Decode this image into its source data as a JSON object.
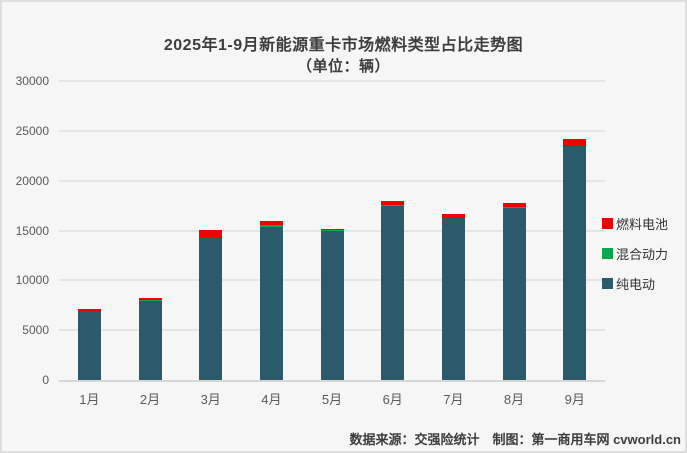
{
  "title": {
    "line1": "2025年1-9月新能源重卡市场燃料类型占比走势图",
    "line2": "（单位：辆）"
  },
  "footer": {
    "text": "数据来源：交强险统计　制图：第一商用车网 cvworld.cn"
  },
  "window": {
    "background": "#f6f6f6",
    "border_color": "#dedede",
    "gridline_color": "#e4e4e4"
  },
  "chart_data": {
    "type": "bar",
    "stacked": true,
    "title": "2025年1-9月新能源重卡市场燃料类型占比走势图",
    "subtitle": "（单位：辆）",
    "unit": "辆",
    "categories": [
      "1月",
      "2月",
      "3月",
      "4月",
      "5月",
      "6月",
      "7月",
      "8月",
      "9月"
    ],
    "series": [
      {
        "name": "纯电动",
        "color": "#2b5a6b",
        "values": [
          6900,
          7950,
          14250,
          15350,
          15000,
          17500,
          16250,
          17250,
          23450
        ]
      },
      {
        "name": "混合动力",
        "color": "#0aa74e",
        "values": [
          20,
          30,
          50,
          250,
          80,
          50,
          50,
          150,
          50
        ]
      },
      {
        "name": "燃料电池",
        "color": "#f20000",
        "values": [
          180,
          220,
          800,
          350,
          120,
          400,
          400,
          400,
          700
        ]
      }
    ],
    "totals": [
      7100,
      8200,
      15100,
      15950,
      15200,
      17950,
      16700,
      17800,
      24200
    ],
    "ylim": [
      0,
      30000
    ],
    "yticks": [
      0,
      5000,
      10000,
      15000,
      20000,
      25000,
      30000
    ],
    "grid": true,
    "legend_position": "right",
    "legend_order": [
      "燃料电池",
      "混合动力",
      "纯电动"
    ]
  }
}
